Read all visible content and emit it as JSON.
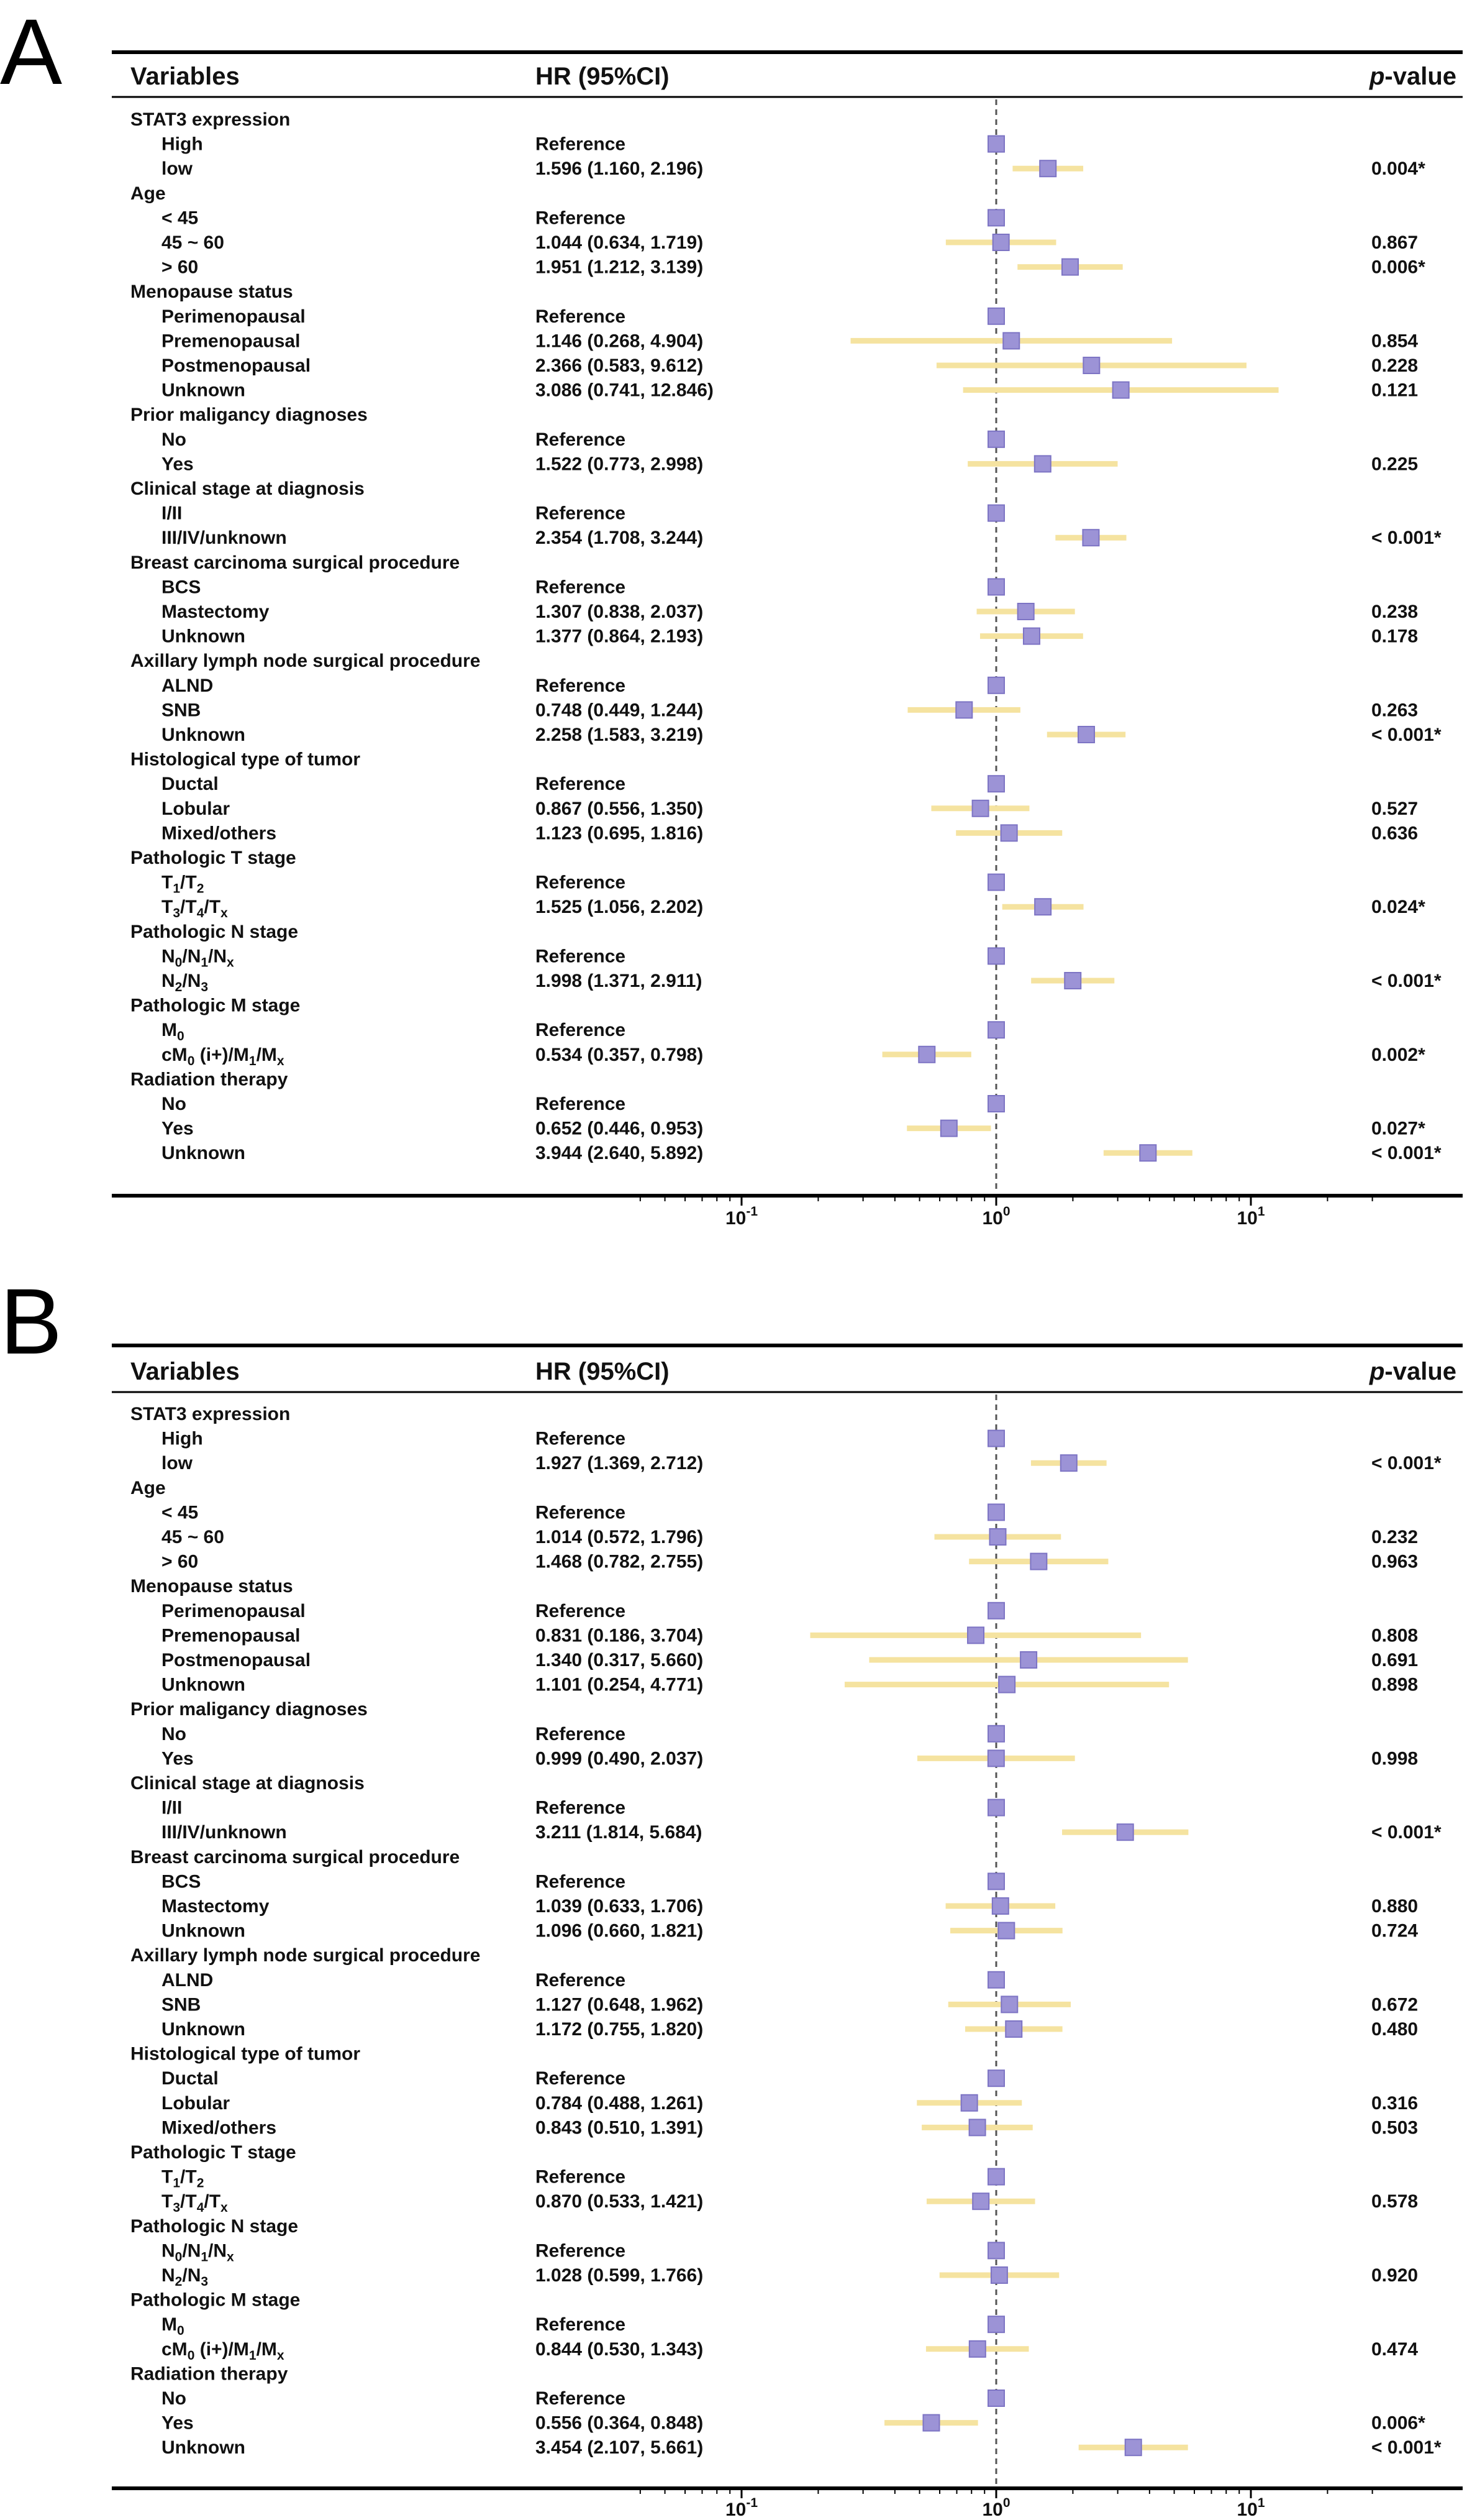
{
  "chart_data": [
    {
      "type": "forest",
      "panel": "A",
      "headers": {
        "variables": "Variables",
        "hr": "HR (95%CI)",
        "pvalue_prefix": "p",
        "pvalue_suffix": "-value"
      },
      "x_scale": "log",
      "xlim": [
        0.04,
        30
      ],
      "ticks": [
        {
          "value": 0.1,
          "base": "10",
          "exp": "-1"
        },
        {
          "value": 1,
          "base": "10",
          "exp": "0"
        },
        {
          "value": 10,
          "base": "10",
          "exp": "1"
        }
      ],
      "reference_line": 1,
      "rows": [
        {
          "kind": "cat",
          "label": "STAT3 expression"
        },
        {
          "kind": "lvl",
          "label": "High",
          "hr_text": "Reference",
          "hr": 1
        },
        {
          "kind": "lvl",
          "label": "low",
          "hr_text": "1.596 (1.160, 2.196)",
          "hr": 1.596,
          "lo": 1.16,
          "hi": 2.196,
          "p": "0.004*"
        },
        {
          "kind": "cat",
          "label": "Age"
        },
        {
          "kind": "lvl",
          "label": "< 45",
          "hr_text": "Reference",
          "hr": 1
        },
        {
          "kind": "lvl",
          "label": "45 ~ 60",
          "hr_text": "1.044 (0.634, 1.719)",
          "hr": 1.044,
          "lo": 0.634,
          "hi": 1.719,
          "p": "0.867"
        },
        {
          "kind": "lvl",
          "label": "> 60",
          "hr_text": "1.951 (1.212, 3.139)",
          "hr": 1.951,
          "lo": 1.212,
          "hi": 3.139,
          "p": "0.006*"
        },
        {
          "kind": "cat",
          "label": "Menopause status"
        },
        {
          "kind": "lvl",
          "label": "Perimenopausal",
          "hr_text": "Reference",
          "hr": 1
        },
        {
          "kind": "lvl",
          "label": "Premenopausal",
          "hr_text": "1.146 (0.268, 4.904)",
          "hr": 1.146,
          "lo": 0.268,
          "hi": 4.904,
          "p": "0.854"
        },
        {
          "kind": "lvl",
          "label": "Postmenopausal",
          "hr_text": "2.366 (0.583, 9.612)",
          "hr": 2.366,
          "lo": 0.583,
          "hi": 9.612,
          "p": "0.228"
        },
        {
          "kind": "lvl",
          "label": "Unknown",
          "hr_text": "3.086 (0.741, 12.846)",
          "hr": 3.086,
          "lo": 0.741,
          "hi": 12.846,
          "p": "0.121"
        },
        {
          "kind": "cat",
          "label": "Prior maligancy diagnoses"
        },
        {
          "kind": "lvl",
          "label": "No",
          "hr_text": "Reference",
          "hr": 1
        },
        {
          "kind": "lvl",
          "label": "Yes",
          "hr_text": "1.522 (0.773, 2.998)",
          "hr": 1.522,
          "lo": 0.773,
          "hi": 2.998,
          "p": "0.225"
        },
        {
          "kind": "cat",
          "label": "Clinical stage at diagnosis"
        },
        {
          "kind": "lvl",
          "label": "I/II",
          "hr_text": "Reference",
          "hr": 1
        },
        {
          "kind": "lvl",
          "label": "III/IV/unknown",
          "hr_text": "2.354 (1.708, 3.244)",
          "hr": 2.354,
          "lo": 1.708,
          "hi": 3.244,
          "p": "< 0.001*"
        },
        {
          "kind": "cat",
          "label": "Breast carcinoma surgical procedure"
        },
        {
          "kind": "lvl",
          "label": "BCS",
          "hr_text": "Reference",
          "hr": 1
        },
        {
          "kind": "lvl",
          "label": "Mastectomy",
          "hr_text": "1.307 (0.838, 2.037)",
          "hr": 1.307,
          "lo": 0.838,
          "hi": 2.037,
          "p": "0.238"
        },
        {
          "kind": "lvl",
          "label": "Unknown",
          "hr_text": "1.377 (0.864, 2.193)",
          "hr": 1.377,
          "lo": 0.864,
          "hi": 2.193,
          "p": "0.178"
        },
        {
          "kind": "cat",
          "label": "Axillary lymph node surgical procedure"
        },
        {
          "kind": "lvl",
          "label": "ALND",
          "hr_text": "Reference",
          "hr": 1
        },
        {
          "kind": "lvl",
          "label": "SNB",
          "hr_text": "0.748 (0.449, 1.244)",
          "hr": 0.748,
          "lo": 0.449,
          "hi": 1.244,
          "p": "0.263"
        },
        {
          "kind": "lvl",
          "label": "Unknown",
          "hr_text": "2.258 (1.583, 3.219)",
          "hr": 2.258,
          "lo": 1.583,
          "hi": 3.219,
          "p": "< 0.001*"
        },
        {
          "kind": "cat",
          "label": "Histological type of tumor"
        },
        {
          "kind": "lvl",
          "label": "Ductal",
          "hr_text": "Reference",
          "hr": 1
        },
        {
          "kind": "lvl",
          "label": "Lobular",
          "hr_text": "0.867 (0.556, 1.350)",
          "hr": 0.867,
          "lo": 0.556,
          "hi": 1.35,
          "p": "0.527"
        },
        {
          "kind": "lvl",
          "label": "Mixed/others",
          "hr_text": "1.123 (0.695, 1.816)",
          "hr": 1.123,
          "lo": 0.695,
          "hi": 1.816,
          "p": "0.636"
        },
        {
          "kind": "cat",
          "label": "Pathologic T stage"
        },
        {
          "kind": "lvl",
          "label": "T1/T2",
          "label_parts": [
            [
              "T",
              ""
            ],
            [
              "1",
              "sub"
            ],
            [
              "/T",
              ""
            ],
            [
              "2",
              "sub"
            ]
          ],
          "hr_text": "Reference",
          "hr": 1
        },
        {
          "kind": "lvl",
          "label": "T3/T4/Tx",
          "label_parts": [
            [
              "T",
              ""
            ],
            [
              "3",
              "sub"
            ],
            [
              "/T",
              ""
            ],
            [
              "4",
              "sub"
            ],
            [
              "/T",
              ""
            ],
            [
              "x",
              "sub"
            ]
          ],
          "hr_text": "1.525 (1.056, 2.202)",
          "hr": 1.525,
          "lo": 1.056,
          "hi": 2.202,
          "p": "0.024*"
        },
        {
          "kind": "cat",
          "label": "Pathologic N stage"
        },
        {
          "kind": "lvl",
          "label": "N0/N1/Nx",
          "label_parts": [
            [
              "N",
              ""
            ],
            [
              "0",
              "sub"
            ],
            [
              "/N",
              ""
            ],
            [
              "1",
              "sub"
            ],
            [
              "/N",
              ""
            ],
            [
              "x",
              "sub"
            ]
          ],
          "hr_text": "Reference",
          "hr": 1
        },
        {
          "kind": "lvl",
          "label": "N2/N3",
          "label_parts": [
            [
              "N",
              ""
            ],
            [
              "2",
              "sub"
            ],
            [
              "/N",
              ""
            ],
            [
              "3",
              "sub"
            ]
          ],
          "hr_text": "1.998 (1.371, 2.911)",
          "hr": 1.998,
          "lo": 1.371,
          "hi": 2.911,
          "p": "< 0.001*"
        },
        {
          "kind": "cat",
          "label": "Pathologic M stage"
        },
        {
          "kind": "lvl",
          "label": "M0",
          "label_parts": [
            [
              "M",
              ""
            ],
            [
              "0",
              "sub"
            ]
          ],
          "hr_text": "Reference",
          "hr": 1
        },
        {
          "kind": "lvl",
          "label": "cM0 (i+)/M1/Mx",
          "label_parts": [
            [
              "cM",
              ""
            ],
            [
              "0",
              "sub"
            ],
            [
              " (i+)/M",
              ""
            ],
            [
              "1",
              "sub"
            ],
            [
              "/M",
              ""
            ],
            [
              "x",
              "sub"
            ]
          ],
          "hr_text": "0.534 (0.357, 0.798)",
          "hr": 0.534,
          "lo": 0.357,
          "hi": 0.798,
          "p": "0.002*"
        },
        {
          "kind": "cat",
          "label": "Radiation therapy"
        },
        {
          "kind": "lvl",
          "label": "No",
          "hr_text": "Reference",
          "hr": 1
        },
        {
          "kind": "lvl",
          "label": "Yes",
          "hr_text": "0.652 (0.446, 0.953)",
          "hr": 0.652,
          "lo": 0.446,
          "hi": 0.953,
          "p": "0.027*"
        },
        {
          "kind": "lvl",
          "label": "Unknown",
          "hr_text": "3.944 (2.640, 5.892)",
          "hr": 3.944,
          "lo": 2.64,
          "hi": 5.892,
          "p": "< 0.001*"
        }
      ]
    },
    {
      "type": "forest",
      "panel": "B",
      "headers": {
        "variables": "Variables",
        "hr": "HR (95%CI)",
        "pvalue_prefix": "p",
        "pvalue_suffix": "-value"
      },
      "x_scale": "log",
      "xlim": [
        0.04,
        30
      ],
      "ticks": [
        {
          "value": 0.1,
          "base": "10",
          "exp": "-1"
        },
        {
          "value": 1,
          "base": "10",
          "exp": "0"
        },
        {
          "value": 10,
          "base": "10",
          "exp": "1"
        }
      ],
      "reference_line": 1,
      "rows": [
        {
          "kind": "cat",
          "label": "STAT3 expression"
        },
        {
          "kind": "lvl",
          "label": "High",
          "hr_text": "Reference",
          "hr": 1
        },
        {
          "kind": "lvl",
          "label": "low",
          "hr_text": "1.927 (1.369, 2.712)",
          "hr": 1.927,
          "lo": 1.369,
          "hi": 2.712,
          "p": "< 0.001*"
        },
        {
          "kind": "cat",
          "label": "Age"
        },
        {
          "kind": "lvl",
          "label": "< 45",
          "hr_text": "Reference",
          "hr": 1
        },
        {
          "kind": "lvl",
          "label": "45 ~ 60",
          "hr_text": "1.014 (0.572, 1.796)",
          "hr": 1.014,
          "lo": 0.572,
          "hi": 1.796,
          "p": "0.232"
        },
        {
          "kind": "lvl",
          "label": "> 60",
          "hr_text": "1.468 (0.782, 2.755)",
          "hr": 1.468,
          "lo": 0.782,
          "hi": 2.755,
          "p": "0.963"
        },
        {
          "kind": "cat",
          "label": "Menopause status"
        },
        {
          "kind": "lvl",
          "label": "Perimenopausal",
          "hr_text": "Reference",
          "hr": 1
        },
        {
          "kind": "lvl",
          "label": "Premenopausal",
          "hr_text": "0.831 (0.186, 3.704)",
          "hr": 0.831,
          "lo": 0.186,
          "hi": 3.704,
          "p": "0.808"
        },
        {
          "kind": "lvl",
          "label": "Postmenopausal",
          "hr_text": "1.340 (0.317, 5.660)",
          "hr": 1.34,
          "lo": 0.317,
          "hi": 5.66,
          "p": "0.691"
        },
        {
          "kind": "lvl",
          "label": "Unknown",
          "hr_text": "1.101 (0.254, 4.771)",
          "hr": 1.101,
          "lo": 0.254,
          "hi": 4.771,
          "p": "0.898"
        },
        {
          "kind": "cat",
          "label": "Prior maligancy diagnoses"
        },
        {
          "kind": "lvl",
          "label": "No",
          "hr_text": "Reference",
          "hr": 1
        },
        {
          "kind": "lvl",
          "label": "Yes",
          "hr_text": "0.999 (0.490, 2.037)",
          "hr": 0.999,
          "lo": 0.49,
          "hi": 2.037,
          "p": "0.998"
        },
        {
          "kind": "cat",
          "label": "Clinical stage at diagnosis"
        },
        {
          "kind": "lvl",
          "label": "I/II",
          "hr_text": "Reference",
          "hr": 1
        },
        {
          "kind": "lvl",
          "label": "III/IV/unknown",
          "hr_text": "3.211 (1.814, 5.684)",
          "hr": 3.211,
          "lo": 1.814,
          "hi": 5.684,
          "p": "< 0.001*"
        },
        {
          "kind": "cat",
          "label": "Breast carcinoma surgical procedure"
        },
        {
          "kind": "lvl",
          "label": "BCS",
          "hr_text": "Reference",
          "hr": 1
        },
        {
          "kind": "lvl",
          "label": "Mastectomy",
          "hr_text": "1.039 (0.633, 1.706)",
          "hr": 1.039,
          "lo": 0.633,
          "hi": 1.706,
          "p": "0.880"
        },
        {
          "kind": "lvl",
          "label": "Unknown",
          "hr_text": "1.096 (0.660, 1.821)",
          "hr": 1.096,
          "lo": 0.66,
          "hi": 1.821,
          "p": "0.724"
        },
        {
          "kind": "cat",
          "label": "Axillary lymph node surgical procedure"
        },
        {
          "kind": "lvl",
          "label": "ALND",
          "hr_text": "Reference",
          "hr": 1
        },
        {
          "kind": "lvl",
          "label": "SNB",
          "hr_text": "1.127 (0.648, 1.962)",
          "hr": 1.127,
          "lo": 0.648,
          "hi": 1.962,
          "p": "0.672"
        },
        {
          "kind": "lvl",
          "label": "Unknown",
          "hr_text": "1.172 (0.755, 1.820)",
          "hr": 1.172,
          "lo": 0.755,
          "hi": 1.82,
          "p": "0.480"
        },
        {
          "kind": "cat",
          "label": "Histological type of tumor"
        },
        {
          "kind": "lvl",
          "label": "Ductal",
          "hr_text": "Reference",
          "hr": 1
        },
        {
          "kind": "lvl",
          "label": "Lobular",
          "hr_text": "0.784 (0.488, 1.261)",
          "hr": 0.784,
          "lo": 0.488,
          "hi": 1.261,
          "p": "0.316"
        },
        {
          "kind": "lvl",
          "label": "Mixed/others",
          "hr_text": "0.843 (0.510, 1.391)",
          "hr": 0.843,
          "lo": 0.51,
          "hi": 1.391,
          "p": "0.503"
        },
        {
          "kind": "cat",
          "label": "Pathologic T stage"
        },
        {
          "kind": "lvl",
          "label": "T1/T2",
          "label_parts": [
            [
              "T",
              ""
            ],
            [
              "1",
              "sub"
            ],
            [
              "/T",
              ""
            ],
            [
              "2",
              "sub"
            ]
          ],
          "hr_text": "Reference",
          "hr": 1
        },
        {
          "kind": "lvl",
          "label": "T3/T4/Tx",
          "label_parts": [
            [
              "T",
              ""
            ],
            [
              "3",
              "sub"
            ],
            [
              "/T",
              ""
            ],
            [
              "4",
              "sub"
            ],
            [
              "/T",
              ""
            ],
            [
              "x",
              "sub"
            ]
          ],
          "hr_text": "0.870 (0.533, 1.421)",
          "hr": 0.87,
          "lo": 0.533,
          "hi": 1.421,
          "p": "0.578"
        },
        {
          "kind": "cat",
          "label": "Pathologic N stage"
        },
        {
          "kind": "lvl",
          "label": "N0/N1/Nx",
          "label_parts": [
            [
              "N",
              ""
            ],
            [
              "0",
              "sub"
            ],
            [
              "/N",
              ""
            ],
            [
              "1",
              "sub"
            ],
            [
              "/N",
              ""
            ],
            [
              "x",
              "sub"
            ]
          ],
          "hr_text": "Reference",
          "hr": 1
        },
        {
          "kind": "lvl",
          "label": "N2/N3",
          "label_parts": [
            [
              "N",
              ""
            ],
            [
              "2",
              "sub"
            ],
            [
              "/N",
              ""
            ],
            [
              "3",
              "sub"
            ]
          ],
          "hr_text": "1.028 (0.599, 1.766)",
          "hr": 1.028,
          "lo": 0.599,
          "hi": 1.766,
          "p": "0.920"
        },
        {
          "kind": "cat",
          "label": "Pathologic M stage"
        },
        {
          "kind": "lvl",
          "label": "M0",
          "label_parts": [
            [
              "M",
              ""
            ],
            [
              "0",
              "sub"
            ]
          ],
          "hr_text": "Reference",
          "hr": 1
        },
        {
          "kind": "lvl",
          "label": "cM0 (i+)/M1/Mx",
          "label_parts": [
            [
              "cM",
              ""
            ],
            [
              "0",
              "sub"
            ],
            [
              " (i+)/M",
              ""
            ],
            [
              "1",
              "sub"
            ],
            [
              "/M",
              ""
            ],
            [
              "x",
              "sub"
            ]
          ],
          "hr_text": "0.844 (0.530, 1.343)",
          "hr": 0.844,
          "lo": 0.53,
          "hi": 1.343,
          "p": "0.474"
        },
        {
          "kind": "cat",
          "label": "Radiation therapy"
        },
        {
          "kind": "lvl",
          "label": "No",
          "hr_text": "Reference",
          "hr": 1
        },
        {
          "kind": "lvl",
          "label": "Yes",
          "hr_text": "0.556 (0.364, 0.848)",
          "hr": 0.556,
          "lo": 0.364,
          "hi": 0.848,
          "p": "0.006*"
        },
        {
          "kind": "lvl",
          "label": "Unknown",
          "hr_text": "3.454 (2.107, 5.661)",
          "hr": 3.454,
          "lo": 2.107,
          "hi": 5.661,
          "p": "< 0.001*"
        }
      ]
    }
  ],
  "colors": {
    "marker": "#9c93d6",
    "marker_edge": "#7d74c4",
    "ci": "#f5e3a0",
    "rule": "#000000",
    "refline": "#555555"
  }
}
